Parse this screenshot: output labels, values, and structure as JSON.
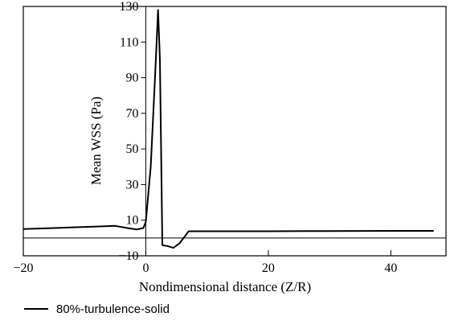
{
  "chart_data": {
    "type": "line",
    "title": "",
    "xlabel": "Nondimensional distance (Z/R)",
    "ylabel": "Mean WSS (Pa)",
    "xlim": [
      -20,
      49
    ],
    "ylim": [
      -10,
      130
    ],
    "x_ticks": [
      -20,
      0,
      20,
      40
    ],
    "y_ticks": [
      -10,
      10,
      30,
      50,
      70,
      90,
      110,
      130
    ],
    "grid": false,
    "legend_position": "bottom-left",
    "series": [
      {
        "name": "80%-turbulence-solid",
        "color": "#000000",
        "points": [
          [
            -20,
            5.0
          ],
          [
            -15,
            5.6
          ],
          [
            -10,
            6.2
          ],
          [
            -5,
            6.8
          ],
          [
            -3,
            5.6
          ],
          [
            -1.5,
            4.8
          ],
          [
            -0.4,
            5.6
          ],
          [
            0,
            9.0
          ],
          [
            0.8,
            40.0
          ],
          [
            1.5,
            90.0
          ],
          [
            2.0,
            128.0
          ],
          [
            2.3,
            100.0
          ],
          [
            2.7,
            -4.0
          ],
          [
            3.5,
            -4.5
          ],
          [
            4.5,
            -5.5
          ],
          [
            5.5,
            -3.0
          ],
          [
            7.0,
            3.8
          ],
          [
            10,
            3.8
          ],
          [
            20,
            3.8
          ],
          [
            30,
            3.9
          ],
          [
            40,
            4.0
          ],
          [
            47,
            4.0
          ]
        ]
      }
    ]
  }
}
